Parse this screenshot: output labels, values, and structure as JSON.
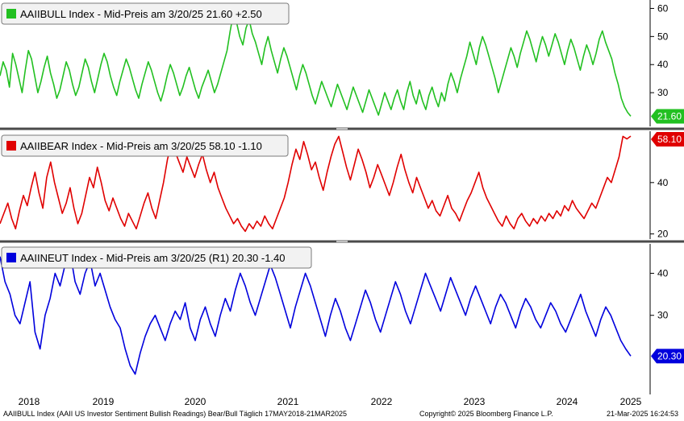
{
  "chart_data": {
    "type": "line",
    "x_axis": {
      "years": [
        "2018",
        "2019",
        "2020",
        "2021",
        "2022",
        "2023",
        "2024",
        "2025"
      ],
      "start": "2018-05-17",
      "end": "2025-03-21"
    },
    "panels": [
      {
        "legend": "AAIIBULL Index - Mid-Preis am 3/20/25 21.60  +2.50",
        "color": "#22c021",
        "ylim": [
          18,
          63
        ],
        "ticks": [
          "60",
          "50",
          "40",
          "30"
        ],
        "last_value": "21.60",
        "values": [
          36,
          41,
          38,
          32,
          44,
          40,
          35,
          30,
          38,
          45,
          42,
          36,
          30,
          34,
          39,
          43,
          37,
          33,
          28,
          31,
          36,
          41,
          38,
          33,
          29,
          32,
          37,
          42,
          39,
          34,
          30,
          35,
          40,
          44,
          41,
          36,
          32,
          29,
          34,
          38,
          42,
          39,
          35,
          31,
          28,
          33,
          37,
          41,
          38,
          34,
          30,
          27,
          31,
          36,
          40,
          37,
          33,
          29,
          32,
          36,
          39,
          35,
          31,
          28,
          32,
          35,
          38,
          34,
          30,
          33,
          37,
          41,
          45,
          52,
          58,
          55,
          50,
          47,
          53,
          56,
          51,
          48,
          44,
          40,
          46,
          50,
          45,
          41,
          37,
          42,
          46,
          43,
          39,
          35,
          31,
          36,
          40,
          37,
          33,
          29,
          26,
          30,
          34,
          31,
          28,
          25,
          29,
          33,
          30,
          27,
          24,
          28,
          32,
          29,
          26,
          23,
          27,
          31,
          28,
          25,
          22,
          26,
          30,
          27,
          24,
          28,
          31,
          27,
          24,
          30,
          34,
          29,
          26,
          31,
          27,
          24,
          29,
          32,
          28,
          25,
          30,
          27,
          33,
          37,
          34,
          30,
          35,
          39,
          43,
          48,
          44,
          40,
          46,
          50,
          47,
          43,
          39,
          35,
          30,
          34,
          38,
          42,
          46,
          43,
          39,
          44,
          48,
          52,
          49,
          45,
          41,
          46,
          50,
          47,
          43,
          47,
          51,
          48,
          44,
          40,
          45,
          49,
          46,
          42,
          38,
          43,
          47,
          44,
          40,
          44,
          49,
          52,
          48,
          45,
          42,
          37,
          33,
          28,
          25,
          23,
          21.6
        ]
      },
      {
        "legend": "AAIIBEAR Index - Mid-Preis am 3/20/25 58.10  -1.10",
        "color": "#e00000",
        "ylim": [
          18,
          60
        ],
        "ticks": [
          "40",
          "20"
        ],
        "last_value": "58.10",
        "values": [
          24,
          28,
          32,
          26,
          22,
          29,
          35,
          31,
          38,
          44,
          36,
          30,
          42,
          48,
          40,
          34,
          28,
          32,
          38,
          30,
          24,
          28,
          35,
          42,
          38,
          46,
          40,
          33,
          29,
          34,
          30,
          26,
          23,
          28,
          25,
          22,
          27,
          32,
          36,
          30,
          26,
          33,
          40,
          49,
          55,
          52,
          48,
          44,
          50,
          46,
          42,
          47,
          51,
          45,
          40,
          44,
          38,
          34,
          30,
          27,
          24,
          26,
          23,
          21,
          24,
          22,
          25,
          23,
          27,
          24,
          22,
          26,
          30,
          34,
          40,
          47,
          53,
          49,
          56,
          51,
          45,
          48,
          42,
          37,
          44,
          50,
          55,
          58,
          52,
          46,
          41,
          47,
          53,
          49,
          44,
          38,
          42,
          47,
          43,
          39,
          35,
          40,
          46,
          51,
          45,
          40,
          36,
          42,
          38,
          34,
          30,
          33,
          29,
          27,
          31,
          35,
          30,
          28,
          25,
          29,
          33,
          36,
          40,
          44,
          38,
          34,
          31,
          28,
          25,
          23,
          27,
          24,
          22,
          26,
          28,
          25,
          23,
          26,
          24,
          27,
          25,
          28,
          26,
          29,
          27,
          31,
          29,
          33,
          30,
          28,
          26,
          29,
          32,
          30,
          34,
          38,
          42,
          40,
          45,
          50,
          58,
          57,
          58.1
        ]
      },
      {
        "legend": "AAIINEUT Index - Mid-Preis am 3/20/25 (R1) 20.30  -1.40",
        "color": "#0000dd",
        "ylim": [
          15,
          47
        ],
        "ticks": [
          "40",
          "30"
        ],
        "last_value": "20.30",
        "values": [
          44,
          38,
          35,
          30,
          28,
          33,
          38,
          26,
          22,
          30,
          34,
          40,
          37,
          42,
          45,
          38,
          35,
          40,
          43,
          37,
          40,
          36,
          32,
          29,
          27,
          22,
          18,
          16,
          21,
          25,
          28,
          30,
          27,
          24,
          28,
          31,
          29,
          33,
          27,
          24,
          29,
          32,
          28,
          25,
          30,
          34,
          31,
          36,
          40,
          37,
          33,
          30,
          34,
          38,
          42,
          39,
          35,
          31,
          27,
          32,
          36,
          40,
          37,
          33,
          29,
          25,
          30,
          34,
          31,
          27,
          24,
          28,
          32,
          36,
          33,
          29,
          26,
          30,
          34,
          38,
          35,
          31,
          28,
          32,
          36,
          40,
          37,
          34,
          31,
          35,
          39,
          36,
          33,
          30,
          34,
          37,
          34,
          31,
          28,
          32,
          35,
          33,
          30,
          27,
          31,
          34,
          32,
          29,
          27,
          30,
          33,
          31,
          28,
          26,
          29,
          32,
          35,
          31,
          28,
          25,
          29,
          32,
          30,
          27,
          24,
          22,
          20.3
        ]
      }
    ]
  },
  "footer": {
    "left": "AAIIBULL Index (AAII US Investor Sentiment Bullish Readings) Bear/Bull  Täglich 17MAY2018-21MAR2025",
    "center": "Copyright© 2025 Bloomberg Finance L.P.",
    "right": "21-Mar-2025 16:24:53"
  }
}
